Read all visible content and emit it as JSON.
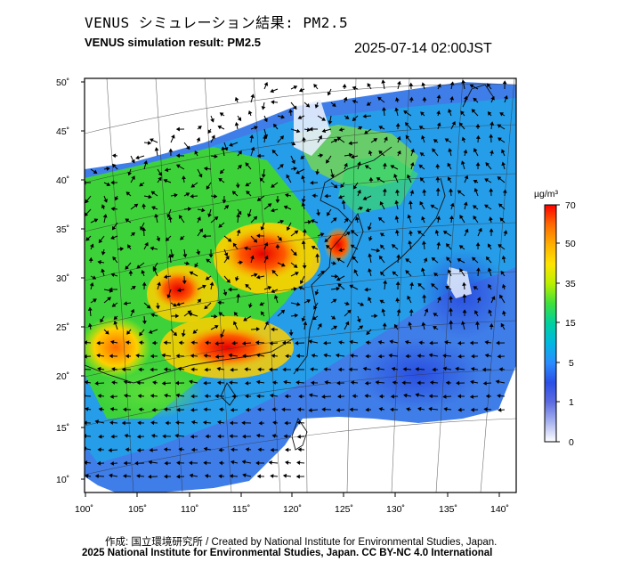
{
  "header": {
    "title_jp": "VENUS シミュレーション結果: PM2.5",
    "title_en": "VENUS simulation result: PM2.5",
    "timestamp": "2025-07-14 02:00JST"
  },
  "map": {
    "lat_labels": [
      "50˚",
      "45˚",
      "40˚",
      "35˚",
      "30˚",
      "25˚",
      "20˚",
      "15˚",
      "10˚"
    ],
    "lon_labels": [
      "100˚",
      "105˚",
      "110˚",
      "115˚",
      "120˚",
      "125˚",
      "130˚",
      "135˚",
      "140˚"
    ]
  },
  "colorbar": {
    "unit": "µg/m³",
    "tick_labels": [
      "70",
      "50",
      "35",
      "15",
      "5",
      "1",
      "0"
    ],
    "colors": [
      "#ff0000",
      "#ff6a00",
      "#ffb000",
      "#ffe400",
      "#b9f000",
      "#3de03d",
      "#00d0a0",
      "#00b8e0",
      "#2a8cff",
      "#2a50e6",
      "#5d6be0",
      "#a8b4f0",
      "#ffffff"
    ]
  },
  "footer": {
    "credit_line1": "作成: 国立環境研究所 / Created by National Institute for Environmental Studies, Japan.",
    "credit_line2": "2025 National Institute for Environmental Studies, Japan. CC BY-NC 4.0 International"
  }
}
